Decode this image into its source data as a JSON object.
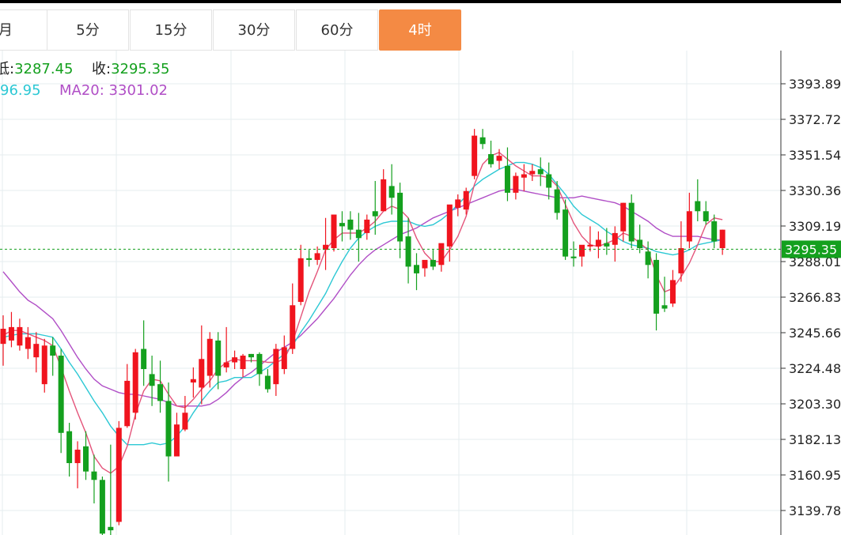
{
  "tabs": [
    {
      "label": "月",
      "active": false
    },
    {
      "label": "5分",
      "active": false
    },
    {
      "label": "15分",
      "active": false
    },
    {
      "label": "30分",
      "active": false
    },
    {
      "label": "60分",
      "active": false
    },
    {
      "label": "4时",
      "active": true
    }
  ],
  "info": {
    "low_label": "低:",
    "low_value": "3287.45",
    "close_label": "收:",
    "close_value": "3295.35",
    "ma10_value": "96.95",
    "ma20_label": "MA20:",
    "ma20_value": "3301.02"
  },
  "colors": {
    "up": "#f0141e",
    "down": "#14a01e",
    "ma5": "#e4547a",
    "ma10": "#2cc8d4",
    "ma20": "#b04ec6",
    "accent": "#f48a44"
  },
  "chart_data": {
    "type": "candlestick",
    "y_ticks": [
      "3393.89",
      "3372.72",
      "3351.54",
      "3330.36",
      "3309.19",
      "3288.01",
      "3266.83",
      "3245.66",
      "3224.48",
      "3203.30",
      "3182.13",
      "3160.95",
      "3139.78"
    ],
    "current_price": "3295.35",
    "ylim": [
      3128,
      3402
    ],
    "candles": [
      [
        3239,
        3256,
        3248,
        3226
      ],
      [
        3241,
        3258,
        3249,
        3237
      ],
      [
        3238,
        3254,
        3249,
        3235
      ],
      [
        3236,
        3249,
        3243,
        3230
      ],
      [
        3231,
        3246,
        3239,
        3222
      ],
      [
        3215,
        3242,
        3238,
        3210
      ],
      [
        3238,
        3243,
        3232,
        3220
      ],
      [
        3232,
        3236,
        3186,
        3174
      ],
      [
        3187,
        3192,
        3168,
        3160
      ],
      [
        3168,
        3181,
        3176,
        3153
      ],
      [
        3178,
        3187,
        3163,
        3158
      ],
      [
        3163,
        3173,
        3158,
        3144
      ],
      [
        3158,
        3160,
        3126,
        3120
      ],
      [
        3130,
        3179,
        3128,
        3122
      ],
      [
        3133,
        3193,
        3189,
        3131
      ],
      [
        3190,
        3227,
        3217,
        3189
      ],
      [
        3198,
        3236,
        3234,
        3194
      ],
      [
        3236,
        3253,
        3224,
        3214
      ],
      [
        3221,
        3232,
        3214,
        3202
      ],
      [
        3215,
        3229,
        3205,
        3198
      ],
      [
        3205,
        3216,
        3172,
        3157
      ],
      [
        3172,
        3198,
        3191,
        3175
      ],
      [
        3188,
        3208,
        3198,
        3187
      ],
      [
        3216,
        3225,
        3218,
        3207
      ],
      [
        3213,
        3250,
        3230,
        3203
      ],
      [
        3220,
        3246,
        3242,
        3213
      ],
      [
        3241,
        3246,
        3220,
        3212
      ],
      [
        3225,
        3249,
        3228,
        3222
      ],
      [
        3228,
        3235,
        3231,
        3224
      ],
      [
        3224,
        3233,
        3232,
        3219
      ],
      [
        3233,
        3233,
        3231,
        3228
      ],
      [
        3233,
        3234,
        3221,
        3214
      ],
      [
        3220,
        3224,
        3212,
        3210
      ],
      [
        3215,
        3239,
        3236,
        3208
      ],
      [
        3224,
        3244,
        3237,
        3221
      ],
      [
        3236,
        3275,
        3262,
        3233
      ],
      [
        3264,
        3298,
        3290,
        3262
      ],
      [
        3290,
        3295,
        3289,
        3285
      ],
      [
        3289,
        3297,
        3293,
        3286
      ],
      [
        3295,
        3314,
        3298,
        3283
      ],
      [
        3296,
        3316,
        3316,
        3294
      ],
      [
        3311,
        3318,
        3309,
        3300
      ],
      [
        3313,
        3318,
        3307,
        3301
      ],
      [
        3307,
        3317,
        3302,
        3288
      ],
      [
        3305,
        3316,
        3313,
        3301
      ],
      [
        3318,
        3336,
        3315,
        3304
      ],
      [
        3318,
        3343,
        3337,
        3318
      ],
      [
        3333,
        3346,
        3326,
        3316
      ],
      [
        3329,
        3335,
        3300,
        3290
      ],
      [
        3303,
        3314,
        3285,
        3275
      ],
      [
        3286,
        3293,
        3281,
        3271
      ],
      [
        3284,
        3287,
        3289,
        3279
      ],
      [
        3289,
        3295,
        3285,
        3283
      ],
      [
        3286,
        3291,
        3299,
        3282
      ],
      [
        3297,
        3318,
        3322,
        3288
      ],
      [
        3320,
        3328,
        3325,
        3315
      ],
      [
        3319,
        3332,
        3330,
        3316
      ],
      [
        3339,
        3367,
        3363,
        3337
      ],
      [
        3362,
        3367,
        3358,
        3355
      ],
      [
        3352,
        3360,
        3346,
        3344
      ],
      [
        3348,
        3355,
        3351,
        3343
      ],
      [
        3345,
        3356,
        3329,
        3324
      ],
      [
        3329,
        3341,
        3339,
        3325
      ],
      [
        3338,
        3346,
        3340,
        3330
      ],
      [
        3340,
        3346,
        3342,
        3336
      ],
      [
        3343,
        3350,
        3340,
        3333
      ],
      [
        3340,
        3347,
        3332,
        3325
      ],
      [
        3331,
        3336,
        3317,
        3313
      ],
      [
        3319,
        3325,
        3291,
        3289
      ],
      [
        3291,
        3300,
        3290,
        3285
      ],
      [
        3291,
        3297,
        3298,
        3285
      ],
      [
        3297,
        3309,
        3298,
        3294
      ],
      [
        3297,
        3306,
        3301,
        3290
      ],
      [
        3299,
        3308,
        3297,
        3292
      ],
      [
        3298,
        3309,
        3305,
        3288
      ],
      [
        3306,
        3323,
        3323,
        3300
      ],
      [
        3323,
        3328,
        3300,
        3296
      ],
      [
        3301,
        3310,
        3296,
        3293
      ],
      [
        3294,
        3300,
        3286,
        3278
      ],
      [
        3289,
        3293,
        3257,
        3247
      ],
      [
        3262,
        3279,
        3260,
        3258
      ],
      [
        3263,
        3283,
        3277,
        3261
      ],
      [
        3281,
        3312,
        3296,
        3276
      ],
      [
        3300,
        3329,
        3318,
        3296
      ],
      [
        3324,
        3337,
        3318,
        3312
      ],
      [
        3318,
        3324,
        3312,
        3310
      ],
      [
        3312,
        3316,
        3300,
        3296
      ],
      [
        3296,
        3307,
        3307,
        3292
      ]
    ],
    "ma5": [
      3244,
      3247,
      3247,
      3245,
      3243,
      3241,
      3238,
      3225,
      3211,
      3198,
      3186,
      3172,
      3165,
      3162,
      3166,
      3178,
      3197,
      3211,
      3218,
      3217,
      3209,
      3202,
      3201,
      3206,
      3212,
      3217,
      3224,
      3228,
      3230,
      3229,
      3229,
      3229,
      3228,
      3228,
      3230,
      3240,
      3255,
      3270,
      3282,
      3295,
      3301,
      3305,
      3305,
      3305,
      3308,
      3312,
      3318,
      3321,
      3319,
      3314,
      3302,
      3293,
      3288,
      3288,
      3295,
      3303,
      3315,
      3334,
      3346,
      3351,
      3353,
      3349,
      3345,
      3342,
      3339,
      3339,
      3338,
      3333,
      3322,
      3311,
      3303,
      3298,
      3297,
      3299,
      3301,
      3305,
      3303,
      3299,
      3295,
      3280,
      3270,
      3272,
      3279,
      3287,
      3298,
      3310,
      3314,
      3313
    ],
    "ma10": [
      3243,
      3244,
      3245,
      3245,
      3245,
      3244,
      3243,
      3236,
      3228,
      3221,
      3213,
      3205,
      3198,
      3190,
      3184,
      3179,
      3179,
      3179,
      3180,
      3179,
      3180,
      3184,
      3190,
      3198,
      3205,
      3211,
      3216,
      3217,
      3219,
      3219,
      3219,
      3222,
      3225,
      3229,
      3233,
      3238,
      3246,
      3253,
      3261,
      3269,
      3279,
      3288,
      3296,
      3302,
      3306,
      3309,
      3311,
      3312,
      3312,
      3312,
      3310,
      3309,
      3310,
      3313,
      3317,
      3322,
      3327,
      3333,
      3337,
      3340,
      3343,
      3345,
      3347,
      3347,
      3346,
      3344,
      3340,
      3334,
      3328,
      3321,
      3316,
      3313,
      3310,
      3306,
      3303,
      3300,
      3298,
      3297,
      3296,
      3294,
      3293,
      3292,
      3293,
      3295,
      3298,
      3299,
      3300,
      3301
    ],
    "ma20": [
      3282,
      3276,
      3270,
      3265,
      3262,
      3258,
      3254,
      3247,
      3239,
      3231,
      3224,
      3218,
      3214,
      3212,
      3210,
      3209,
      3209,
      3208,
      3207,
      3206,
      3204,
      3202,
      3202,
      3202,
      3202,
      3203,
      3206,
      3210,
      3215,
      3219,
      3222,
      3226,
      3230,
      3234,
      3237,
      3240,
      3244,
      3249,
      3254,
      3260,
      3266,
      3273,
      3280,
      3286,
      3291,
      3295,
      3298,
      3301,
      3304,
      3306,
      3308,
      3311,
      3314,
      3316,
      3318,
      3320,
      3322,
      3324,
      3326,
      3328,
      3330,
      3331,
      3331,
      3330,
      3329,
      3328,
      3327,
      3326,
      3326,
      3326,
      3327,
      3326,
      3325,
      3324,
      3323,
      3321,
      3318,
      3315,
      3312,
      3308,
      3305,
      3303,
      3303,
      3303,
      3303,
      3302,
      3301,
      3301
    ]
  }
}
